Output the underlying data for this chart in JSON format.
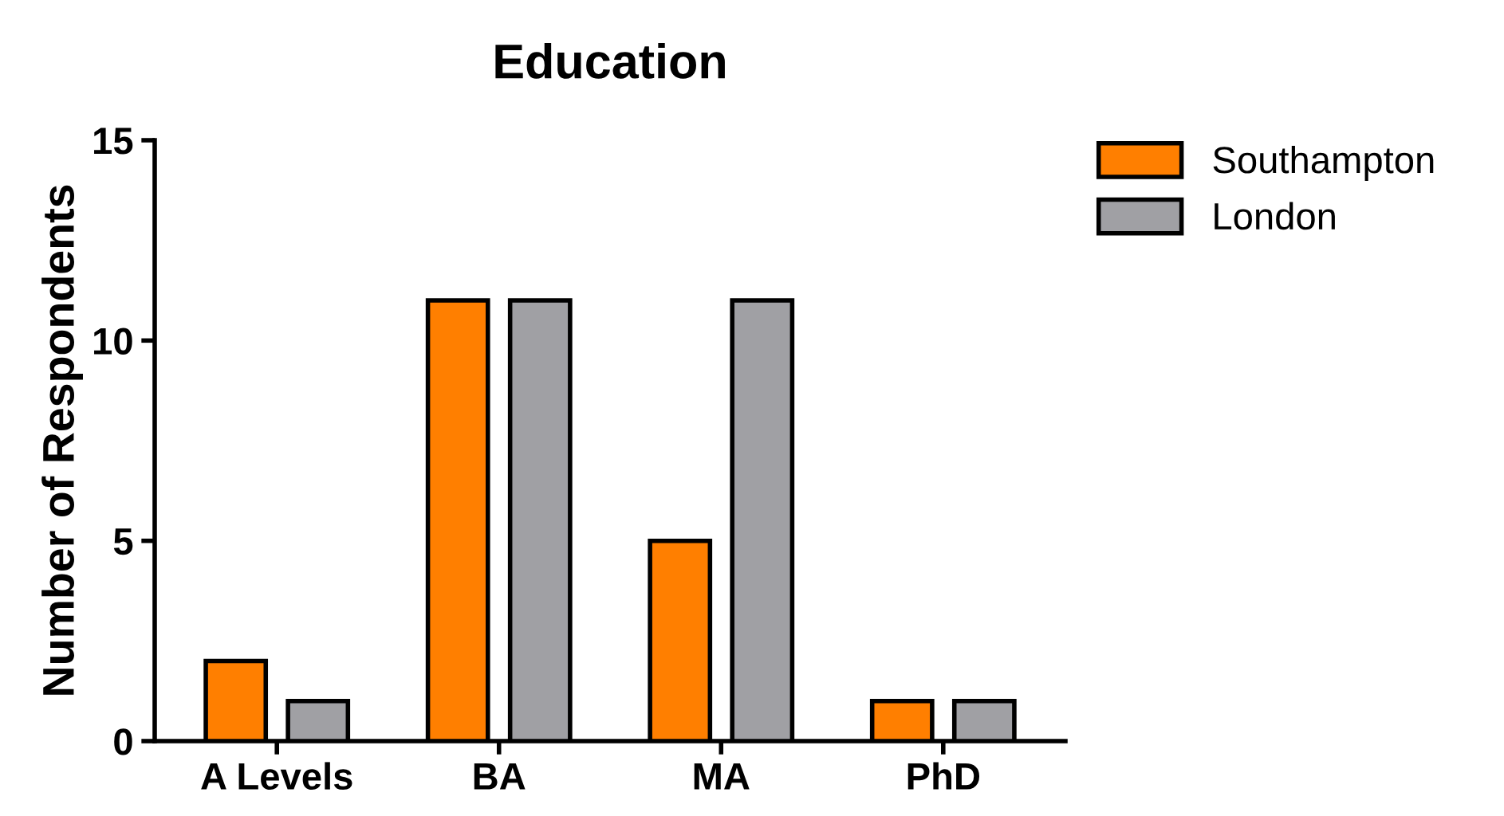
{
  "chart_data": {
    "type": "bar",
    "title": "Education",
    "ylabel": "Number of Respondents",
    "categories": [
      "A Levels",
      "BA",
      "MA",
      "PhD"
    ],
    "series": [
      {
        "name": "Southampton",
        "color": "#ff7f00",
        "values": [
          2,
          11,
          5,
          1
        ]
      },
      {
        "name": "London",
        "color": "#a0a0a4",
        "values": [
          1,
          11,
          11,
          1
        ]
      }
    ],
    "ylim": [
      0,
      15
    ],
    "yticks": [
      0,
      5,
      10,
      15
    ],
    "grid": false,
    "legend": "top right"
  }
}
